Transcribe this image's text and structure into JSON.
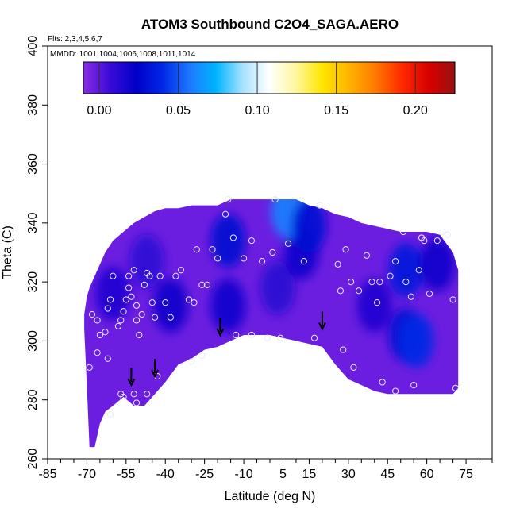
{
  "chart_data": {
    "type": "heatmap",
    "title": "ATOM3 Southbound C2O4_SAGA.AERO",
    "flights_note": "Flts: 2,3,4,5,6,7",
    "dates_note": "MMDD: 1001,1004,1006,1008,1011,1014",
    "xlabel": "Latitude (deg N)",
    "ylabel": "Theta (C)",
    "xlim": [
      -85,
      85
    ],
    "ylim": [
      260,
      400
    ],
    "x_ticks": [
      -85,
      -70,
      -55,
      -40,
      -25,
      -10,
      5,
      15,
      30,
      45,
      60,
      75
    ],
    "x_tick_labels": [
      "-85",
      "-70",
      "-55",
      "-40",
      "-25",
      "-10",
      "5",
      "15",
      "30",
      "45",
      "60",
      "75"
    ],
    "y_ticks": [
      260,
      280,
      300,
      320,
      340,
      360,
      380,
      400
    ],
    "y_tick_labels": [
      "260",
      "280",
      "300",
      "320",
      "340",
      "360",
      "380",
      "400"
    ],
    "colorbar": {
      "range": [
        -0.01,
        0.225
      ],
      "ticks": [
        0.0,
        0.05,
        0.1,
        0.15,
        0.2
      ],
      "tick_labels": [
        "0.00",
        "0.05",
        "0.10",
        "0.15",
        "0.20"
      ],
      "colors": [
        "#8a2be2",
        "#3a0bd8",
        "#0000c8",
        "#0028e6",
        "#1e78ff",
        "#00b4ff",
        "#a6e2ff",
        "#ffffff",
        "#fff7a0",
        "#ffe600",
        "#ffb400",
        "#ff7a00",
        "#ff2a00",
        "#d80000",
        "#9c1010"
      ]
    },
    "field_outline": {
      "latitude": [
        -71,
        -70,
        -69,
        -67,
        -65,
        -63,
        -60,
        -56,
        -52,
        -48,
        -44,
        -40,
        -35,
        -30,
        -25,
        -20,
        -15,
        -10,
        -5,
        0,
        5,
        10,
        15,
        20,
        25,
        30,
        35,
        40,
        45,
        50,
        55,
        60,
        65,
        70,
        72
      ],
      "theta_top": [
        309,
        315,
        318,
        322,
        326,
        330,
        334,
        337,
        340,
        342,
        344,
        345,
        345,
        346,
        346,
        346,
        348,
        348,
        348,
        348,
        348,
        348,
        346,
        345,
        343,
        342,
        340,
        339,
        338,
        337,
        337,
        337,
        336,
        330,
        324
      ],
      "theta_bottom": [
        304,
        285,
        264,
        264,
        272,
        276,
        278,
        281,
        278,
        278,
        282,
        286,
        292,
        294,
        297,
        298,
        300,
        302,
        302,
        302,
        301,
        300,
        299,
        298,
        292,
        287,
        285,
        283,
        282,
        282,
        282,
        282,
        282,
        282,
        284
      ]
    },
    "blobs": [
      {
        "lat": -47,
        "theta": 327,
        "value": 0.01
      },
      {
        "lat": -60,
        "theta": 316,
        "value": 0.015
      },
      {
        "lat": -38,
        "theta": 312,
        "value": 0.02
      },
      {
        "lat": -16,
        "theta": 334,
        "value": 0.028
      },
      {
        "lat": -16,
        "theta": 312,
        "value": 0.018
      },
      {
        "lat": 3,
        "theta": 318,
        "value": 0.012
      },
      {
        "lat": 12,
        "theta": 330,
        "value": 0.018
      },
      {
        "lat": 40,
        "theta": 312,
        "value": 0.015
      },
      {
        "lat": 52,
        "theta": 302,
        "value": 0.03
      },
      {
        "lat": 56,
        "theta": 300,
        "value": 0.04
      },
      {
        "lat": 52,
        "theta": 324,
        "value": 0.035
      },
      {
        "lat": 64,
        "theta": 326,
        "value": 0.02
      },
      {
        "lat": 7,
        "theta": 344,
        "value": 0.06
      },
      {
        "lat": 15,
        "theta": 339,
        "value": 0.03
      }
    ],
    "samples": [
      {
        "lat": -69,
        "theta": 291
      },
      {
        "lat": -66,
        "theta": 296
      },
      {
        "lat": -62,
        "theta": 294
      },
      {
        "lat": -61,
        "theta": 275
      },
      {
        "lat": -57,
        "theta": 282
      },
      {
        "lat": -56,
        "theta": 281
      },
      {
        "lat": -52,
        "theta": 282
      },
      {
        "lat": -51,
        "theta": 279
      },
      {
        "lat": -47,
        "theta": 282
      },
      {
        "lat": -43,
        "theta": 288
      },
      {
        "lat": -30,
        "theta": 293
      },
      {
        "lat": -26,
        "theta": 295
      },
      {
        "lat": -13,
        "theta": 302
      },
      {
        "lat": -7,
        "theta": 302
      },
      {
        "lat": -1,
        "theta": 301
      },
      {
        "lat": 4,
        "theta": 301
      },
      {
        "lat": 17,
        "theta": 301
      },
      {
        "lat": 28,
        "theta": 297
      },
      {
        "lat": 32,
        "theta": 291
      },
      {
        "lat": 43,
        "theta": 286
      },
      {
        "lat": 48,
        "theta": 283
      },
      {
        "lat": 55,
        "theta": 285
      },
      {
        "lat": 71,
        "theta": 284
      },
      {
        "lat": -68,
        "theta": 309
      },
      {
        "lat": -66,
        "theta": 307
      },
      {
        "lat": -65,
        "theta": 302
      },
      {
        "lat": -63,
        "theta": 303
      },
      {
        "lat": -62,
        "theta": 311
      },
      {
        "lat": -61,
        "theta": 314
      },
      {
        "lat": -60,
        "theta": 322
      },
      {
        "lat": -58,
        "theta": 305
      },
      {
        "lat": -57,
        "theta": 307
      },
      {
        "lat": -56,
        "theta": 310
      },
      {
        "lat": -55,
        "theta": 314
      },
      {
        "lat": -54,
        "theta": 318
      },
      {
        "lat": -54,
        "theta": 322
      },
      {
        "lat": -53,
        "theta": 315
      },
      {
        "lat": -52,
        "theta": 324
      },
      {
        "lat": -51,
        "theta": 307
      },
      {
        "lat": -51,
        "theta": 312
      },
      {
        "lat": -50,
        "theta": 302
      },
      {
        "lat": -49,
        "theta": 309
      },
      {
        "lat": -48,
        "theta": 319
      },
      {
        "lat": -47,
        "theta": 323
      },
      {
        "lat": -46,
        "theta": 322
      },
      {
        "lat": -45,
        "theta": 313
      },
      {
        "lat": -44,
        "theta": 308
      },
      {
        "lat": -42,
        "theta": 322
      },
      {
        "lat": -40,
        "theta": 313
      },
      {
        "lat": -38,
        "theta": 308
      },
      {
        "lat": -36,
        "theta": 322
      },
      {
        "lat": -34,
        "theta": 324
      },
      {
        "lat": -31,
        "theta": 314
      },
      {
        "lat": -29,
        "theta": 313
      },
      {
        "lat": -28,
        "theta": 331
      },
      {
        "lat": -26,
        "theta": 319
      },
      {
        "lat": -24,
        "theta": 319
      },
      {
        "lat": -22,
        "theta": 331
      },
      {
        "lat": -20,
        "theta": 328
      },
      {
        "lat": -17,
        "theta": 343
      },
      {
        "lat": -16,
        "theta": 348
      },
      {
        "lat": -14,
        "theta": 335
      },
      {
        "lat": -10,
        "theta": 328
      },
      {
        "lat": -7,
        "theta": 334
      },
      {
        "lat": -3,
        "theta": 327
      },
      {
        "lat": 1,
        "theta": 330
      },
      {
        "lat": 2,
        "theta": 348
      },
      {
        "lat": 7,
        "theta": 333
      },
      {
        "lat": 13,
        "theta": 327
      },
      {
        "lat": 19,
        "theta": 346
      },
      {
        "lat": 26,
        "theta": 326
      },
      {
        "lat": 27,
        "theta": 317
      },
      {
        "lat": 29,
        "theta": 331
      },
      {
        "lat": 31,
        "theta": 320
      },
      {
        "lat": 34,
        "theta": 317
      },
      {
        "lat": 37,
        "theta": 329
      },
      {
        "lat": 39,
        "theta": 320
      },
      {
        "lat": 41,
        "theta": 313
      },
      {
        "lat": 42,
        "theta": 320
      },
      {
        "lat": 46,
        "theta": 322
      },
      {
        "lat": 48,
        "theta": 327
      },
      {
        "lat": 51,
        "theta": 337
      },
      {
        "lat": 52,
        "theta": 320
      },
      {
        "lat": 54,
        "theta": 315
      },
      {
        "lat": 57,
        "theta": 324
      },
      {
        "lat": 58,
        "theta": 335
      },
      {
        "lat": 59,
        "theta": 334
      },
      {
        "lat": 61,
        "theta": 316
      },
      {
        "lat": 64,
        "theta": 334
      },
      {
        "lat": 66,
        "theta": 337
      },
      {
        "lat": 68,
        "theta": 336
      },
      {
        "lat": 70,
        "theta": 314
      }
    ],
    "arrows": [
      {
        "lat": -53,
        "theta": 285
      },
      {
        "lat": -44,
        "theta": 288
      },
      {
        "lat": -19,
        "theta": 302
      },
      {
        "lat": 20,
        "theta": 304
      }
    ]
  }
}
